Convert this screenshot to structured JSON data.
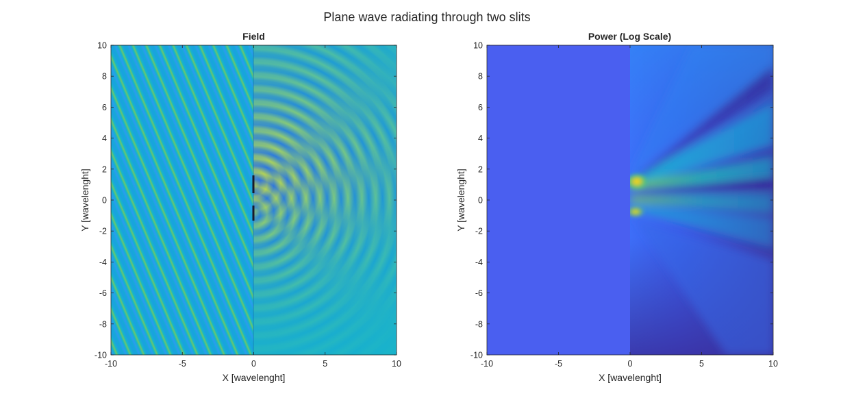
{
  "figure": {
    "title": "Plane wave radiating through two slits"
  },
  "chart_data": [
    {
      "type": "heatmap",
      "title": "Field",
      "xlabel": "X [wavelenght]",
      "ylabel": "Y [wavelenght]",
      "xlim": [
        -10,
        10
      ],
      "ylim": [
        -10,
        10
      ],
      "xticks": [
        -10,
        -5,
        0,
        5,
        10
      ],
      "yticks": [
        -10,
        -8,
        -6,
        -4,
        -2,
        0,
        2,
        4,
        6,
        8,
        10
      ],
      "xtick_labels": [
        "-10",
        "-5",
        "0",
        "5",
        "10"
      ],
      "ytick_labels": [
        "-10",
        "-8",
        "-6",
        "-4",
        "-2",
        "0",
        "2",
        "4",
        "6",
        "8",
        "10"
      ],
      "grid": false,
      "colormap": "parula",
      "screen": {
        "x": 0,
        "y_min": -1.6,
        "y_max": 1.6
      },
      "slits": [
        {
          "x": 0,
          "y": 1.1
        },
        {
          "x": 0,
          "y": -0.9
        }
      ],
      "incident_wave": {
        "region": "x < 0",
        "kind": "oblique plane wave"
      },
      "diffracted_waves": {
        "region": "x > 0",
        "kind": "two interfering cylindrical waves"
      }
    },
    {
      "type": "heatmap",
      "title": "Power (Log Scale)",
      "xlabel": "X [wavelenght]",
      "ylabel": "Y [wavelenght]",
      "xlim": [
        -10,
        10
      ],
      "ylim": [
        -10,
        10
      ],
      "xticks": [
        -10,
        -5,
        0,
        5,
        10
      ],
      "yticks": [
        -10,
        -8,
        -6,
        -4,
        -2,
        0,
        2,
        4,
        6,
        8,
        10
      ],
      "xtick_labels": [
        "-10",
        "-5",
        "0",
        "5",
        "10"
      ],
      "ytick_labels": [
        "-10",
        "-8",
        "-6",
        "-4",
        "-2",
        "0",
        "2",
        "4",
        "6",
        "8",
        "10"
      ],
      "grid": false,
      "colormap": "parula",
      "scale": "log",
      "slits": [
        {
          "x": 0,
          "y": 1.1
        },
        {
          "x": 0,
          "y": -0.9
        }
      ],
      "uniform_region": {
        "region": "x < 0",
        "color": "#4a5ff0"
      }
    }
  ]
}
